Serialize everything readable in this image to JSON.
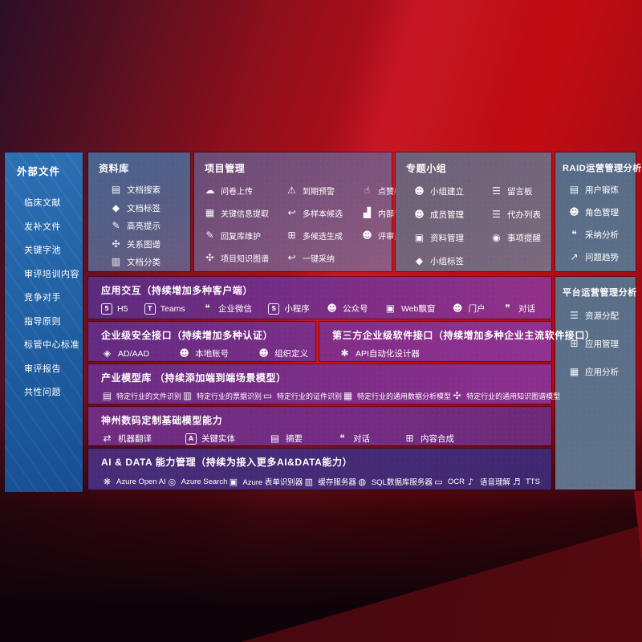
{
  "colors": {
    "background_red": "#b80d16",
    "sidebar_blue": "#1f5ea2",
    "repo_panel": "#55608a",
    "project_panel": "#7a527b",
    "group_panel": "#73657a",
    "slate_panel": "#5d7089",
    "row_magenta": "#8b2f8d",
    "row_indigo": "#432a72",
    "text": "#ffffff"
  },
  "sidebar": {
    "title": "外部文件",
    "items": [
      "临床文献",
      "发补文件",
      "关键字池",
      "审评培训内容",
      "竞争对手",
      "指导原则",
      "标管中心标准",
      "审评报告",
      "共性问题"
    ]
  },
  "panels": {
    "ziliaoku": {
      "title": "资料库",
      "items": [
        {
          "icon": "doc-search-icon",
          "label": "文档搜索"
        },
        {
          "icon": "tag-icon",
          "label": "文档标签"
        },
        {
          "icon": "highlight-pen-icon",
          "label": "高亮提示"
        },
        {
          "icon": "knowledge-graph-icon",
          "label": "关系图谱"
        },
        {
          "icon": "doc-classify-icon",
          "label": "文档分类"
        }
      ]
    },
    "xiangmu": {
      "title": "项目管理",
      "items": [
        {
          "icon": "cloud-upload-icon",
          "label": "问卷上传"
        },
        {
          "icon": "alarm-icon",
          "label": "到期预警"
        },
        {
          "icon": "thumbs-up-icon",
          "label": "点赞感谢"
        },
        {
          "icon": "info-extract-icon",
          "label": "关键信息提取"
        },
        {
          "icon": "reply-arrow-icon",
          "label": "多样本候选"
        },
        {
          "icon": "ranking-icon",
          "label": "内部专家排名"
        },
        {
          "icon": "pencil-icon",
          "label": "回复库维护"
        },
        {
          "icon": "grid-gen-icon",
          "label": "多候选生成"
        },
        {
          "icon": "person-icon",
          "label": "评审员画像"
        },
        {
          "icon": "knowledge-graph-icon",
          "label": "项目知识图谱"
        },
        {
          "icon": "adopt-arrow-icon",
          "label": "一键采纳"
        }
      ]
    },
    "zhuanti": {
      "title": "专题小组",
      "items": [
        {
          "icon": "group-icon",
          "label": "小组建立"
        },
        {
          "icon": "bbs-icon",
          "label": "留言板"
        },
        {
          "icon": "member-add-icon",
          "label": "成员管理"
        },
        {
          "icon": "todo-list-icon",
          "label": "代办列表"
        },
        {
          "icon": "album-icon",
          "label": "资料管理"
        },
        {
          "icon": "bell-icon",
          "label": "事项提醒"
        },
        {
          "icon": "tag-icon",
          "label": "小组标签"
        }
      ]
    },
    "raid": {
      "title": "RAID运营管理分析",
      "items": [
        {
          "icon": "user-card-icon",
          "label": "用户锻炼"
        },
        {
          "icon": "role-icon",
          "label": "角色管理"
        },
        {
          "icon": "chat-analysis-icon",
          "label": "采纳分析"
        },
        {
          "icon": "trend-icon",
          "label": "问题趋势"
        }
      ]
    },
    "platform": {
      "title": "平台运营管理分析",
      "items": [
        {
          "icon": "list-icon",
          "label": "资源分配"
        },
        {
          "icon": "grid-icon",
          "label": "应用管理"
        },
        {
          "icon": "chart-icon",
          "label": "应用分析"
        }
      ]
    }
  },
  "rows": {
    "app": {
      "title": "应用交互（持续增加多种客户端）",
      "items": [
        {
          "icon": "html5-icon",
          "label": "H5"
        },
        {
          "icon": "teams-icon",
          "label": "Teams"
        },
        {
          "icon": "wechat-work-icon",
          "label": "企业微信"
        },
        {
          "icon": "miniprogram-icon",
          "label": "小程序"
        },
        {
          "icon": "official-account-icon",
          "label": "公众号"
        },
        {
          "icon": "web-window-icon",
          "label": "Web飘窗"
        },
        {
          "icon": "portal-icon",
          "label": "门户"
        },
        {
          "icon": "dialog-icon",
          "label": "对话"
        }
      ]
    },
    "security": {
      "title": "企业级安全接口（持续增加多种认证）",
      "items": [
        {
          "icon": "ad-icon",
          "label": "AD/AAD"
        },
        {
          "icon": "local-account-icon",
          "label": "本地账号"
        },
        {
          "icon": "org-icon",
          "label": "组织定义"
        }
      ]
    },
    "thirdparty": {
      "title": "第三方企业级软件接口（持续增加多种企业主流软件接口）",
      "items": [
        {
          "icon": "api-designer-icon",
          "label": "API自动化设计器"
        }
      ]
    },
    "industry": {
      "title": "产业模型库 （持续添加端到端场景模型）",
      "items": [
        {
          "icon": "file-recog-icon",
          "label": "特定行业的文件识别"
        },
        {
          "icon": "invoice-recog-icon",
          "label": "特定行业的票据识别"
        },
        {
          "icon": "id-recog-icon",
          "label": "特定行业的证件识别"
        },
        {
          "icon": "data-model-icon",
          "label": "特定行业的通用数据分析模型"
        },
        {
          "icon": "kg-model-icon",
          "label": "特定行业的通用知识图谱模型"
        }
      ]
    },
    "dcmodels": {
      "title": "神州数码定制基础模型能力",
      "items": [
        {
          "icon": "translate-icon",
          "label": "机器翻译"
        },
        {
          "icon": "entity-icon",
          "label": "关键实体"
        },
        {
          "icon": "summary-icon",
          "label": "摘要"
        },
        {
          "icon": "chat-icon",
          "label": "对话"
        },
        {
          "icon": "compose-icon",
          "label": "内容合成"
        }
      ]
    },
    "aidata": {
      "title": "AI & DATA 能力管理（持续为接入更多AI&DATA能力）",
      "items": [
        {
          "icon": "openai-icon",
          "label": "Azure Open AI"
        },
        {
          "icon": "search-icon",
          "label": "Azure Search"
        },
        {
          "icon": "form-recog-icon",
          "label": "Azure 表单识别器"
        },
        {
          "icon": "cache-server-icon",
          "label": "缓存服务器"
        },
        {
          "icon": "sql-server-icon",
          "label": "SQL数据库服务器"
        },
        {
          "icon": "ocr-icon",
          "label": "OCR"
        },
        {
          "icon": "speech-icon",
          "label": "语音理解"
        },
        {
          "icon": "tts-icon",
          "label": "TTS"
        }
      ]
    }
  },
  "icon_glyphs": {
    "doc-search-icon": "▤",
    "tag-icon": "◆",
    "highlight-pen-icon": "✎",
    "knowledge-graph-icon": "✣",
    "doc-classify-icon": "▥",
    "cloud-upload-icon": "☁",
    "alarm-icon": "⚠",
    "thumbs-up-icon": "☝",
    "info-extract-icon": "▦",
    "reply-arrow-icon": "↩",
    "ranking-icon": "▟",
    "pencil-icon": "✎",
    "grid-gen-icon": "⊞",
    "person-icon": "☻",
    "adopt-arrow-icon": "↩",
    "group-icon": "☻",
    "bbs-icon": "☰",
    "member-add-icon": "☻",
    "todo-list-icon": "☰",
    "album-icon": "▣",
    "bell-icon": "◉",
    "user-card-icon": "▤",
    "role-icon": "☻",
    "chat-analysis-icon": "❝",
    "trend-icon": "↗",
    "list-icon": "☰",
    "grid-icon": "⊞",
    "chart-icon": "▦",
    "html5-icon": "b:5",
    "teams-icon": "b:T",
    "wechat-work-icon": "❝",
    "miniprogram-icon": "b:S",
    "official-account-icon": "☻",
    "web-window-icon": "▣",
    "portal-icon": "☻",
    "dialog-icon": "❞",
    "ad-icon": "◈",
    "local-account-icon": "☻",
    "org-icon": "☻",
    "api-designer-icon": "✱",
    "file-recog-icon": "▤",
    "invoice-recog-icon": "▥",
    "id-recog-icon": "▭",
    "data-model-icon": "▦",
    "kg-model-icon": "✣",
    "translate-icon": "⇄",
    "entity-icon": "b:A",
    "summary-icon": "▤",
    "chat-icon": "❝",
    "compose-icon": "⊞",
    "openai-icon": "❋",
    "search-icon": "◎",
    "form-recog-icon": "▣",
    "cache-server-icon": "▥",
    "sql-server-icon": "◍",
    "ocr-icon": "▭",
    "speech-icon": "♪",
    "tts-icon": "♬"
  }
}
